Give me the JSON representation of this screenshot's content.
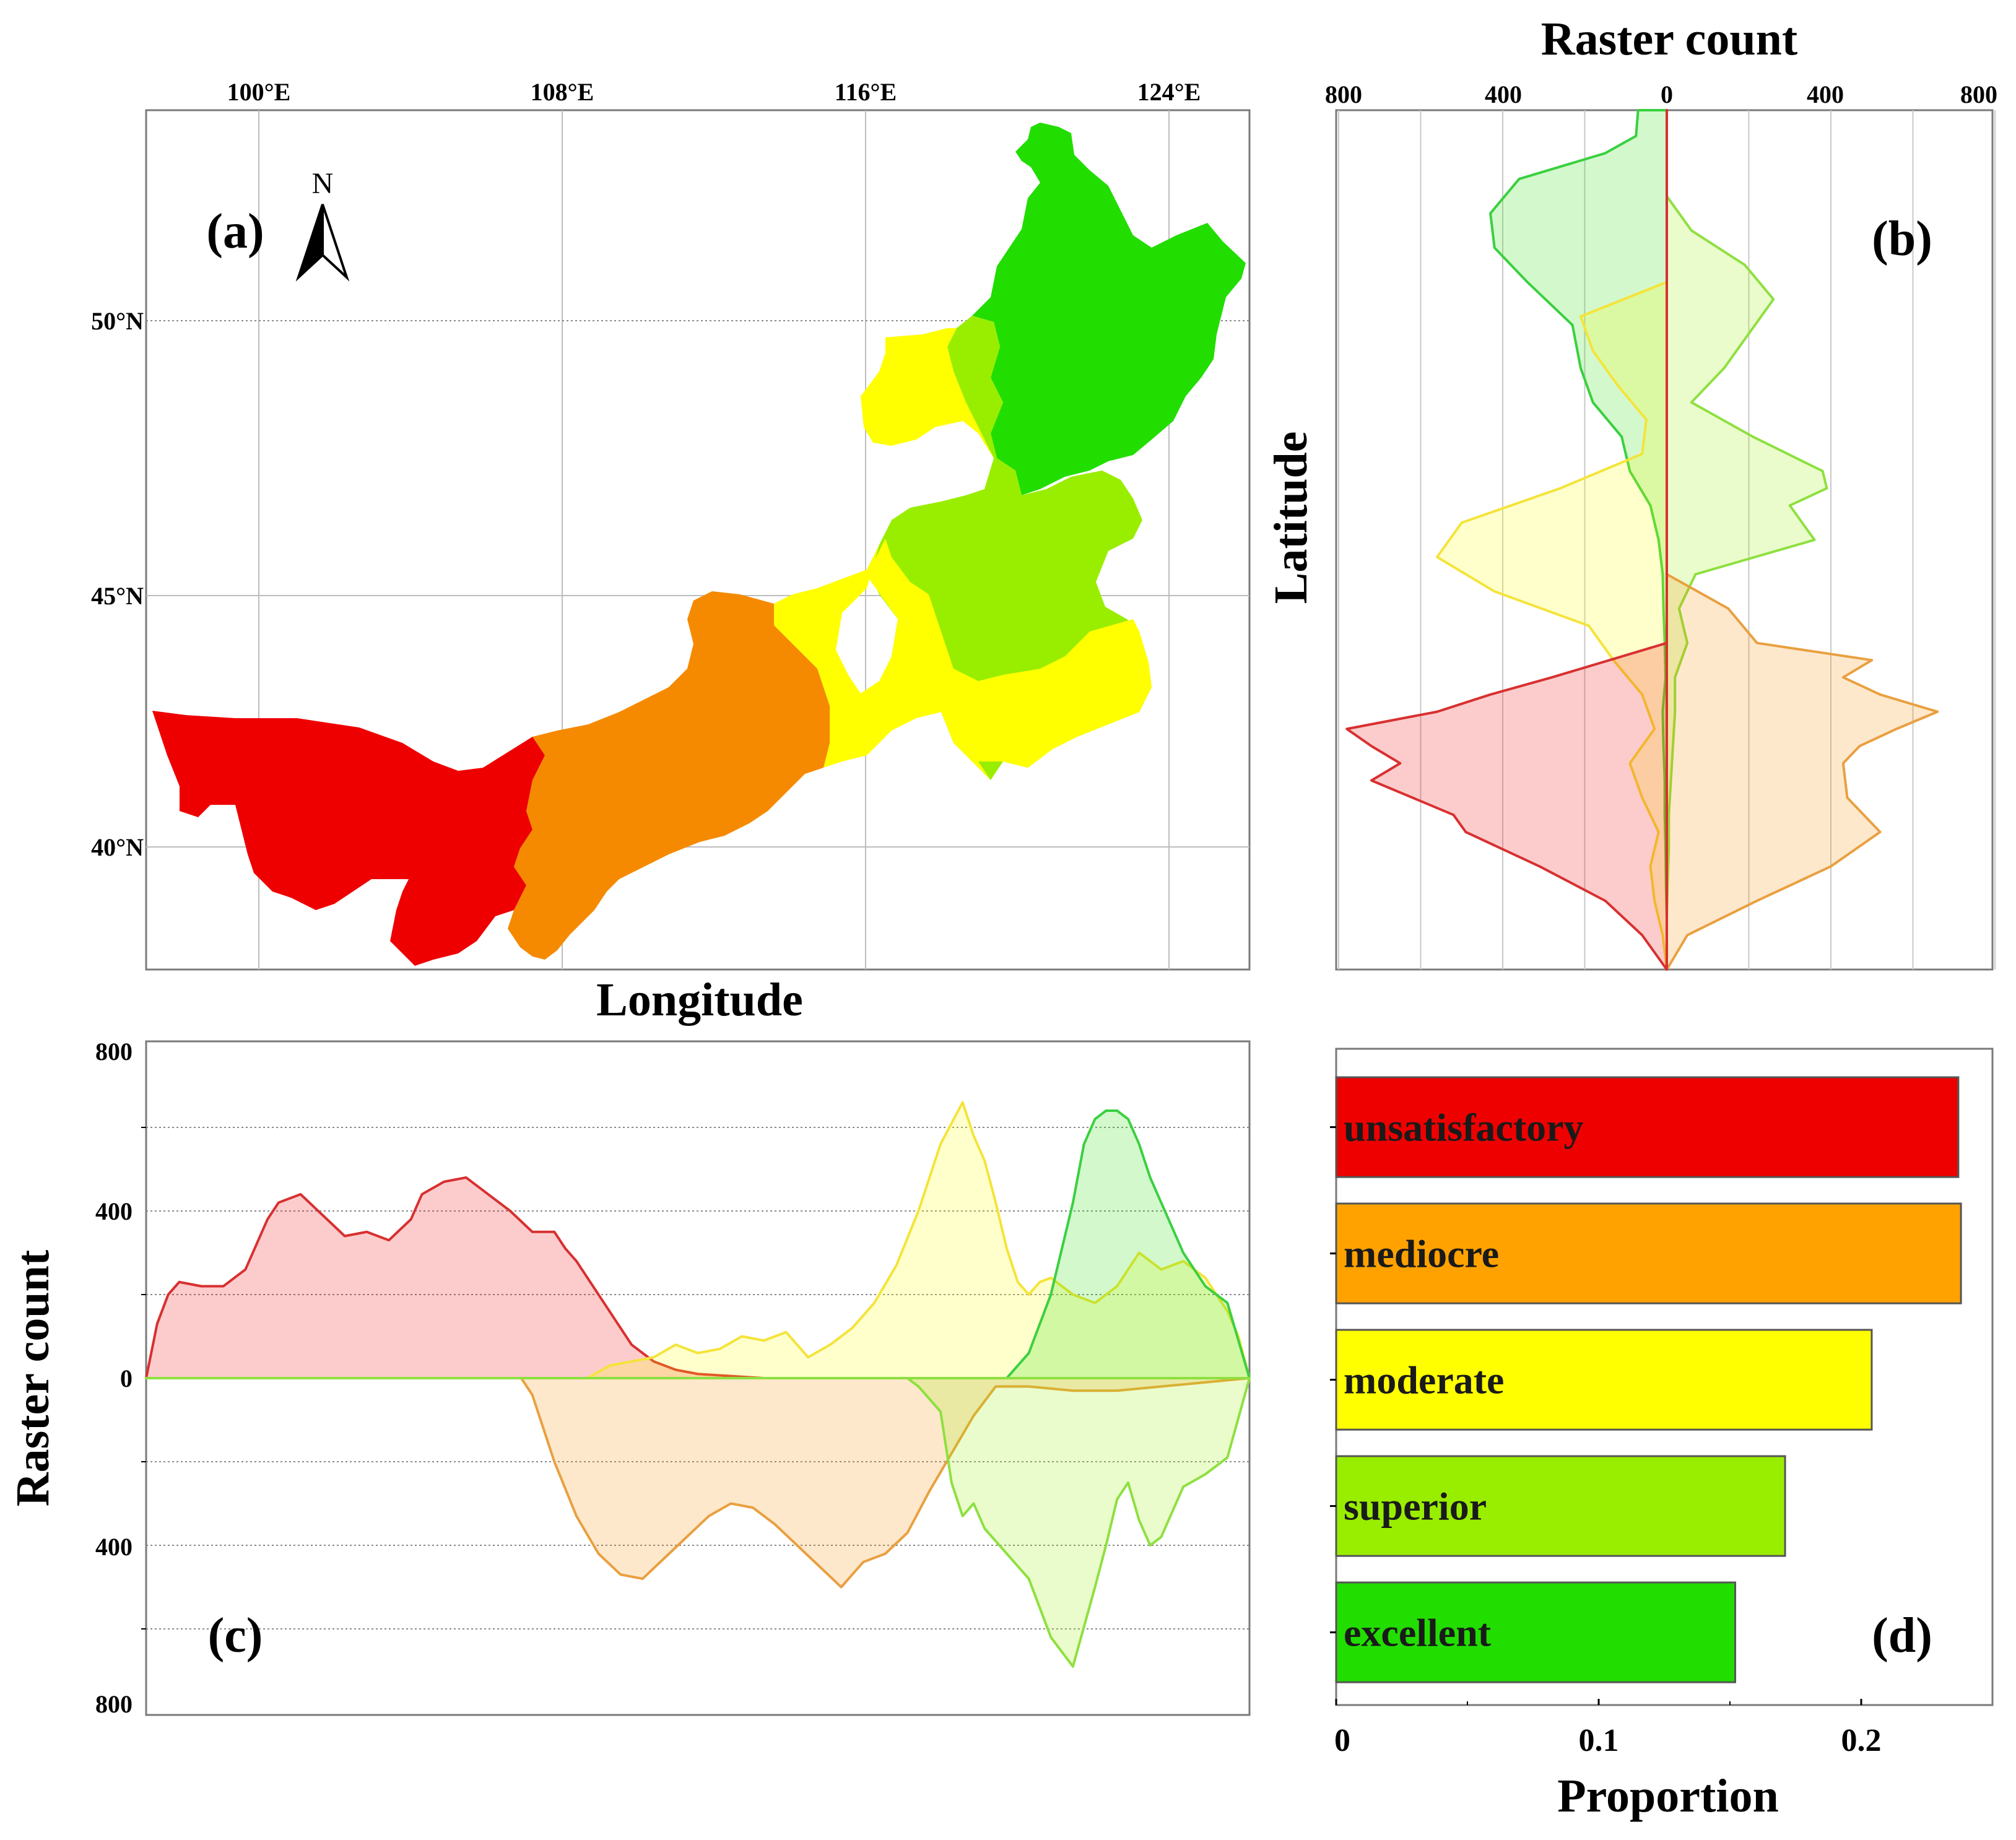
{
  "chart_data": [
    {
      "panel": "(a)",
      "type": "map",
      "top_ticks": [
        "100°E",
        "108°E",
        "116°E",
        "124°E"
      ],
      "left_ticks": [
        "50°N",
        "45°N",
        "40°N"
      ],
      "xlabel": "Longitude",
      "north_arrow": "N",
      "regions": [
        {
          "class": "unsatisfactory",
          "color": "#ee0000"
        },
        {
          "class": "mediocre",
          "color": "#f58a00"
        },
        {
          "class": "moderate",
          "color": "#ffff00"
        },
        {
          "class": "superior",
          "color": "#99ee00"
        },
        {
          "class": "excellent",
          "color": "#22dd00"
        }
      ]
    },
    {
      "panel": "(b)",
      "type": "area",
      "orientation": "horizontal",
      "title": "Raster count",
      "ylabel": "Latitude",
      "x_ticks": [
        "800",
        "400",
        "0",
        "400",
        "800"
      ],
      "xlim": [
        -800,
        800
      ],
      "note": "left of 0 and right of 0 both show raster count; y runs top (north) to bottom (south)",
      "series": [
        {
          "name": "excellent",
          "side": "left",
          "y": [
            0,
            3,
            5,
            8,
            12,
            16,
            20,
            25,
            30,
            34,
            38,
            42,
            46,
            50,
            54,
            58,
            62,
            66,
            70,
            74,
            78,
            82,
            86,
            90,
            94,
            98,
            100
          ],
          "values": [
            70,
            75,
            150,
            360,
            430,
            420,
            340,
            230,
            210,
            180,
            110,
            90,
            40,
            20,
            10,
            8,
            5,
            3,
            10,
            8,
            5,
            5,
            3,
            2,
            0,
            0,
            0
          ]
        },
        {
          "name": "superior",
          "side": "right",
          "y": [
            0,
            10,
            14,
            18,
            22,
            26,
            30,
            34,
            38,
            42,
            44,
            46,
            50,
            54,
            58,
            62,
            66,
            70,
            74,
            78,
            82,
            86,
            90,
            94,
            98,
            100
          ],
          "values": [
            0,
            0,
            60,
            190,
            260,
            200,
            140,
            60,
            210,
            380,
            390,
            300,
            360,
            70,
            30,
            50,
            20,
            20,
            15,
            10,
            5,
            5,
            2,
            0,
            0,
            0
          ]
        },
        {
          "name": "moderate",
          "side": "left",
          "y": [
            0,
            20,
            24,
            28,
            32,
            36,
            40,
            44,
            48,
            52,
            56,
            60,
            64,
            68,
            72,
            76,
            80,
            84,
            88,
            92,
            96,
            100
          ],
          "values": [
            0,
            0,
            210,
            180,
            120,
            50,
            60,
            260,
            500,
            560,
            420,
            190,
            130,
            60,
            30,
            90,
            60,
            20,
            40,
            30,
            10,
            0
          ]
        },
        {
          "name": "mediocre",
          "side": "right",
          "y": [
            0,
            54,
            58,
            62,
            64,
            66,
            68,
            70,
            72,
            74,
            76,
            80,
            84,
            88,
            92,
            96,
            100
          ],
          "values": [
            0,
            0,
            150,
            220,
            500,
            430,
            520,
            660,
            560,
            470,
            430,
            440,
            520,
            400,
            220,
            50,
            0
          ]
        },
        {
          "name": "unsatisfactory",
          "side": "left",
          "y": [
            0,
            62,
            66,
            68,
            70,
            72,
            74,
            76,
            78,
            80,
            82,
            84,
            88,
            92,
            96,
            100
          ],
          "values": [
            0,
            0,
            280,
            430,
            560,
            780,
            720,
            650,
            720,
            620,
            520,
            490,
            310,
            150,
            60,
            0
          ]
        }
      ]
    },
    {
      "panel": "(c)",
      "type": "area",
      "ylabel": "Raster count",
      "y_ticks": [
        "800",
        "400",
        "0",
        "400",
        "800"
      ],
      "ylim": [
        -800,
        800
      ],
      "note": "above 0 and below 0 both show raster count; x runs west to east",
      "series": [
        {
          "name": "unsatisfactory",
          "side": "up",
          "x": [
            0,
            1,
            2,
            3,
            5,
            7,
            9,
            11,
            12,
            14,
            16,
            18,
            20,
            22,
            24,
            25,
            27,
            29,
            31,
            33,
            35,
            37,
            38,
            39,
            41,
            43,
            44,
            46,
            48,
            50,
            53,
            56,
            60,
            100
          ],
          "values": [
            0,
            130,
            200,
            230,
            220,
            220,
            260,
            380,
            420,
            440,
            390,
            340,
            350,
            330,
            380,
            440,
            470,
            480,
            440,
            400,
            350,
            350,
            310,
            280,
            200,
            120,
            80,
            40,
            20,
            10,
            5,
            0,
            0,
            0
          ]
        },
        {
          "name": "moderate",
          "side": "up",
          "x": [
            0,
            40,
            42,
            44,
            46,
            48,
            50,
            52,
            54,
            56,
            58,
            60,
            62,
            64,
            66,
            68,
            70,
            72,
            74,
            75,
            76,
            77,
            78,
            79,
            80,
            81,
            82,
            84,
            86,
            88,
            90,
            92,
            94,
            96,
            97,
            98,
            99,
            100
          ],
          "values": [
            0,
            0,
            30,
            40,
            50,
            80,
            60,
            70,
            100,
            90,
            110,
            50,
            80,
            120,
            180,
            270,
            400,
            560,
            660,
            580,
            520,
            420,
            310,
            230,
            200,
            230,
            240,
            200,
            180,
            220,
            300,
            260,
            280,
            240,
            200,
            160,
            100,
            0
          ]
        },
        {
          "name": "excellent",
          "side": "up",
          "x": [
            0,
            78,
            80,
            82,
            84,
            85,
            86,
            87,
            88,
            89,
            90,
            91,
            92,
            93,
            94,
            96,
            98,
            100
          ],
          "values": [
            0,
            0,
            60,
            200,
            420,
            560,
            620,
            640,
            640,
            620,
            560,
            480,
            420,
            360,
            300,
            220,
            180,
            0
          ]
        },
        {
          "name": "mediocre",
          "side": "down",
          "x": [
            0,
            34,
            35,
            37,
            39,
            41,
            43,
            45,
            47,
            49,
            51,
            53,
            55,
            57,
            59,
            61,
            63,
            65,
            67,
            69,
            71,
            73,
            75,
            77,
            80,
            84,
            88,
            92,
            96,
            100
          ],
          "values": [
            0,
            0,
            40,
            200,
            330,
            420,
            470,
            480,
            430,
            380,
            330,
            300,
            310,
            350,
            400,
            450,
            500,
            440,
            420,
            370,
            270,
            180,
            90,
            20,
            20,
            30,
            30,
            20,
            10,
            0
          ]
        },
        {
          "name": "superior",
          "side": "down",
          "x": [
            0,
            69,
            70,
            72,
            73,
            74,
            75,
            76,
            78,
            80,
            82,
            84,
            86,
            87,
            88,
            89,
            90,
            91,
            92,
            93,
            94,
            96,
            98,
            100
          ],
          "values": [
            0,
            0,
            20,
            80,
            250,
            330,
            300,
            360,
            420,
            480,
            620,
            690,
            500,
            400,
            290,
            250,
            340,
            400,
            380,
            320,
            260,
            230,
            190,
            0
          ]
        }
      ]
    },
    {
      "panel": "(d)",
      "type": "bar",
      "orientation": "horizontal",
      "xlabel": "Proportion",
      "x_ticks": [
        "0",
        "0.1",
        "0.2"
      ],
      "xlim": [
        0,
        0.25
      ],
      "categories": [
        "unsatisfactory",
        "mediocre",
        "moderate",
        "superior",
        "excellent"
      ],
      "values": [
        0.237,
        0.238,
        0.204,
        0.171,
        0.152
      ],
      "colors": [
        "#ee0000",
        "#ffa200",
        "#ffff00",
        "#99ee00",
        "#22dd00"
      ]
    }
  ]
}
